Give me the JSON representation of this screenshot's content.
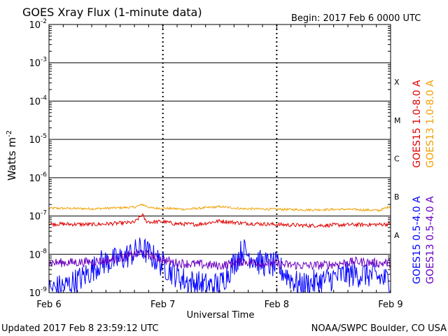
{
  "chart_data": {
    "type": "line",
    "title": "GOES Xray Flux (1-minute data)",
    "subtitle": "Begin:  2017 Feb 6 0000 UTC",
    "xlabel": "Universal Time",
    "ylabel": "Watts m",
    "ylabel_sup": "-2",
    "x_ticks": [
      "Feb 6",
      "Feb 7",
      "Feb 8",
      "Feb 9"
    ],
    "x_range_days": [
      0,
      3
    ],
    "y_scale": "log",
    "ylim": [
      1e-09,
      0.01
    ],
    "y_ticks": [
      {
        "base": "10",
        "exp": "-9"
      },
      {
        "base": "10",
        "exp": "-8"
      },
      {
        "base": "10",
        "exp": "-7"
      },
      {
        "base": "10",
        "exp": "-6"
      },
      {
        "base": "10",
        "exp": "-5"
      },
      {
        "base": "10",
        "exp": "-4"
      },
      {
        "base": "10",
        "exp": "-3"
      },
      {
        "base": "10",
        "exp": "-2"
      }
    ],
    "flare_classes": [
      {
        "label": "A",
        "at": 1e-08
      },
      {
        "label": "B",
        "at": 1e-07
      },
      {
        "label": "C",
        "at": 1e-06
      },
      {
        "label": "M",
        "at": 1e-05
      },
      {
        "label": "X",
        "at": 0.0001
      }
    ],
    "series": [
      {
        "name": "GOES15 1.0-8.0 A",
        "color": "#e00000",
        "x": [
          0,
          0.4,
          0.75,
          0.82,
          0.85,
          0.9,
          1.0,
          1.1,
          1.3,
          1.5,
          1.7,
          2.0,
          2.3,
          2.6,
          2.9,
          3.0
        ],
        "y": [
          6.2e-08,
          6e-08,
          6.8e-08,
          1.1e-07,
          7.4e-08,
          6.9e-08,
          7.2e-08,
          6.3e-08,
          6e-08,
          7.4e-08,
          6.5e-08,
          6e-08,
          5.6e-08,
          5.9e-08,
          6e-08,
          6.2e-08
        ]
      },
      {
        "name": "GOES13 1.0-8.0 A",
        "color": "#f0a000",
        "x": [
          0,
          0.4,
          0.75,
          0.82,
          0.9,
          1.0,
          1.2,
          1.5,
          1.7,
          2.0,
          2.3,
          2.6,
          2.9,
          3.0
        ],
        "y": [
          1.6e-07,
          1.55e-07,
          1.7e-07,
          2e-07,
          1.6e-07,
          1.6e-07,
          1.5e-07,
          1.75e-07,
          1.55e-07,
          1.5e-07,
          1.45e-07,
          1.5e-07,
          1.4e-07,
          1.8e-07
        ]
      },
      {
        "name": "GOES15 0.5-4.0 A",
        "color": "#0000ff",
        "x": [
          0,
          0.15,
          0.3,
          0.45,
          0.6,
          0.82,
          0.95,
          1.05,
          1.2,
          1.4,
          1.5,
          1.7,
          1.85,
          2.0,
          2.2,
          2.4,
          2.6,
          2.8,
          3.0
        ],
        "y": [
          1.2e-09,
          1.5e-09,
          2.5e-09,
          6e-09,
          7e-09,
          1.4e-08,
          7e-09,
          4e-09,
          2e-09,
          1.5e-09,
          1.6e-09,
          1.3e-08,
          6e-09,
          5e-09,
          1.5e-09,
          2e-09,
          3e-09,
          3e-09,
          2e-09
        ]
      },
      {
        "name": "GOES13 0.5-4.0 A",
        "color": "#6a00c0",
        "x": [
          0,
          0.3,
          0.5,
          0.7,
          0.82,
          0.95,
          1.1,
          1.3,
          1.5,
          1.7,
          1.9,
          2.1,
          2.3,
          2.5,
          2.7,
          2.9,
          3.0
        ],
        "y": [
          6e-09,
          6.2e-09,
          6.8e-09,
          9e-09,
          1.1e-08,
          8e-09,
          6e-09,
          5.5e-09,
          5e-09,
          6.5e-09,
          5.8e-09,
          5.3e-09,
          5e-09,
          5.5e-09,
          6.5e-09,
          5.8e-09,
          6e-09
        ]
      }
    ]
  },
  "footer": {
    "updated": "Updated 2017 Feb  8 23:59:12 UTC",
    "credit": "NOAA/SWPC Boulder, CO USA"
  }
}
